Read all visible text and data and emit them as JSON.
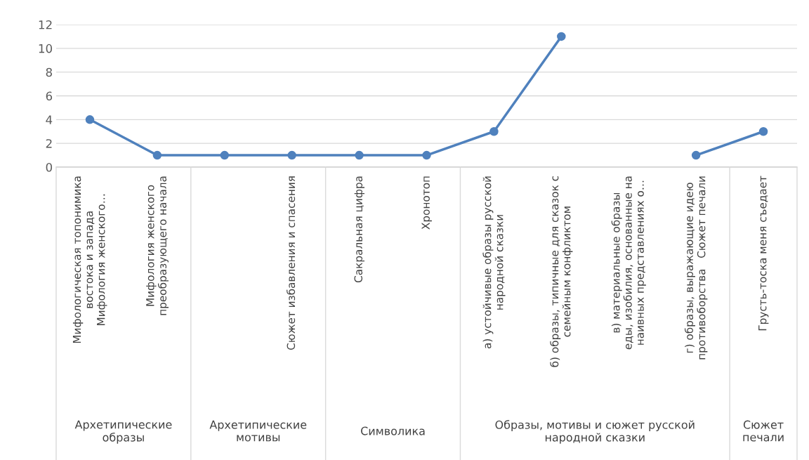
{
  "chart_data": {
    "type": "line",
    "categories": [
      "Мифологическая топонимика\nвостока и запада\nМифология женского…",
      "Мифология женского\nпреобразующего начала",
      null,
      "Сюжет избавления и спасения",
      "Сакральная цифра",
      "Хронотоп",
      "а) устойчивые образы русской\nнародной сказки",
      "б) образы, типичные для сказок с\nсемейным конфликтом",
      "в) материальные образы\nеды, изобилия, основанные на\nнаивных представлениях о…",
      "г) образы, выражающие идею\nпротивоборства   Сюжет печали",
      "Грусть-тоска меня съедает"
    ],
    "values": [
      4,
      1,
      1,
      1,
      1,
      1,
      3,
      11,
      null,
      1,
      3
    ],
    "color": "#4f81bd",
    "ylim": [
      0,
      12
    ],
    "yticks": [
      0,
      2,
      4,
      6,
      8,
      10,
      12
    ],
    "grid": "y",
    "marker": "circle",
    "line_style": "solid",
    "annotations": [
      "Архетипические\nобразы",
      "Архетипические\nмотивы",
      "Символика",
      "Образы, мотивы и сюжет русской\nнародной сказки",
      "Сюжет\nпечали"
    ]
  }
}
